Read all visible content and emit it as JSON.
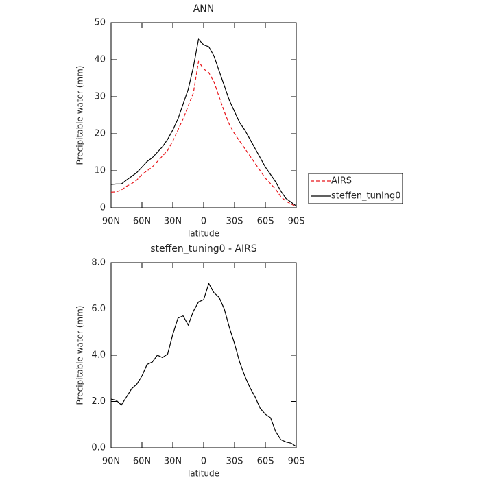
{
  "chart_data": [
    {
      "type": "line",
      "title": "ANN",
      "x_label": "latitude",
      "y_label": "Precipitable water (mm)",
      "x": [
        90,
        85,
        80,
        75,
        70,
        65,
        60,
        55,
        50,
        45,
        40,
        35,
        30,
        25,
        20,
        15,
        10,
        5,
        0,
        -5,
        -10,
        -15,
        -20,
        -25,
        -30,
        -35,
        -40,
        -45,
        -50,
        -55,
        -60,
        -65,
        -70,
        -75,
        -80,
        -85,
        -90
      ],
      "xlim": [
        90,
        -90
      ],
      "xticks": [
        {
          "value": 90,
          "label": "90N"
        },
        {
          "value": 60,
          "label": "60N"
        },
        {
          "value": 30,
          "label": "30N"
        },
        0,
        {
          "value": -30,
          "label": "30S"
        },
        {
          "value": -60,
          "label": "60S"
        },
        {
          "value": -90,
          "label": "90S"
        }
      ],
      "ylim": [
        0,
        50
      ],
      "yticks": [
        0,
        10,
        20,
        30,
        40,
        50
      ],
      "legend": "right",
      "series": [
        {
          "name": "AIRS",
          "color": "#e8161b",
          "dashed": true,
          "values": [
            4.2,
            4.3,
            4.8,
            5.8,
            6.5,
            7.5,
            9,
            10,
            11,
            12.5,
            14,
            15.5,
            18,
            21,
            24,
            27.5,
            31,
            39.5,
            37.5,
            36.5,
            34,
            30,
            26,
            22.5,
            20,
            18,
            16,
            14,
            12,
            10,
            8,
            6.5,
            5,
            3,
            1.8,
            1,
            0.3
          ]
        },
        {
          "name": "steffen_tuning0",
          "color": "#000000",
          "dashed": false,
          "values": [
            6.3,
            6.4,
            6.4,
            7.5,
            8.5,
            9.5,
            11,
            12.5,
            13.5,
            15,
            16.5,
            18.5,
            21,
            24,
            28,
            32,
            38,
            45.5,
            44,
            43.5,
            41,
            37,
            33,
            29,
            26,
            23,
            21,
            18.5,
            16,
            13.5,
            11,
            9,
            7,
            4.5,
            2.5,
            1.5,
            0.5
          ]
        }
      ]
    },
    {
      "type": "line",
      "title": "steffen_tuning0 - AIRS",
      "x_label": "latitude",
      "y_label": "Precipitable water (mm)",
      "x": [
        90,
        85,
        80,
        75,
        70,
        65,
        60,
        55,
        50,
        45,
        40,
        35,
        30,
        25,
        20,
        15,
        10,
        5,
        0,
        -5,
        -10,
        -15,
        -20,
        -25,
        -30,
        -35,
        -40,
        -45,
        -50,
        -55,
        -60,
        -65,
        -70,
        -75,
        -80,
        -85,
        -90
      ],
      "xlim": [
        90,
        -90
      ],
      "xticks": [
        {
          "value": 90,
          "label": "90N"
        },
        {
          "value": 60,
          "label": "60N"
        },
        {
          "value": 30,
          "label": "30N"
        },
        0,
        {
          "value": -30,
          "label": "30S"
        },
        {
          "value": -60,
          "label": "60S"
        },
        {
          "value": -90,
          "label": "90S"
        }
      ],
      "ylim": [
        0,
        8
      ],
      "yticks": [
        {
          "value": 0,
          "label": "0.0"
        },
        {
          "value": 2,
          "label": "2.0"
        },
        {
          "value": 4,
          "label": "4.0"
        },
        {
          "value": 6,
          "label": "6.0"
        },
        {
          "value": 8,
          "label": "8.0"
        }
      ],
      "series": [
        {
          "color": "#000000",
          "dashed": false,
          "values": [
            2.1,
            2.05,
            1.85,
            2.2,
            2.55,
            2.75,
            3.1,
            3.6,
            3.7,
            4.0,
            3.9,
            4.05,
            4.9,
            5.6,
            5.7,
            5.3,
            5.9,
            6.3,
            6.4,
            7.1,
            6.7,
            6.5,
            6.0,
            5.2,
            4.5,
            3.7,
            3.1,
            2.6,
            2.2,
            1.7,
            1.45,
            1.3,
            0.7,
            0.35,
            0.25,
            0.2,
            0.05
          ]
        }
      ]
    }
  ]
}
